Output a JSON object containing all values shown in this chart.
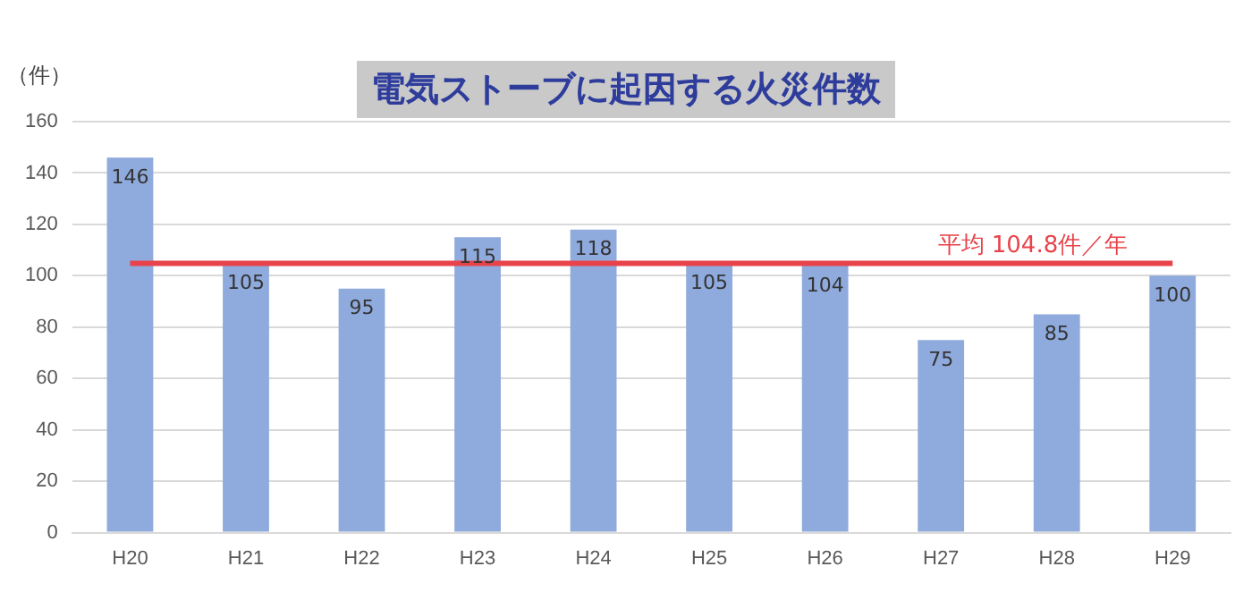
{
  "chart_data": {
    "type": "bar",
    "title": "電気ストーブに起因する火災件数",
    "ylabel": "（件）",
    "categories": [
      "H20",
      "H21",
      "H22",
      "H23",
      "H24",
      "H25",
      "H26",
      "H27",
      "H28",
      "H29"
    ],
    "values": [
      146,
      105,
      95,
      115,
      118,
      105,
      104,
      75,
      85,
      100
    ],
    "color": "#8faadc",
    "ylim": [
      0,
      160
    ],
    "yticks": [
      0,
      20,
      40,
      60,
      80,
      100,
      120,
      140,
      160
    ],
    "grid": "y",
    "data_labels": true,
    "ref_lines": [
      {
        "axis": "y",
        "value": 104.8,
        "label": "平均 104.8件／年",
        "color": "#e8434b"
      }
    ]
  }
}
